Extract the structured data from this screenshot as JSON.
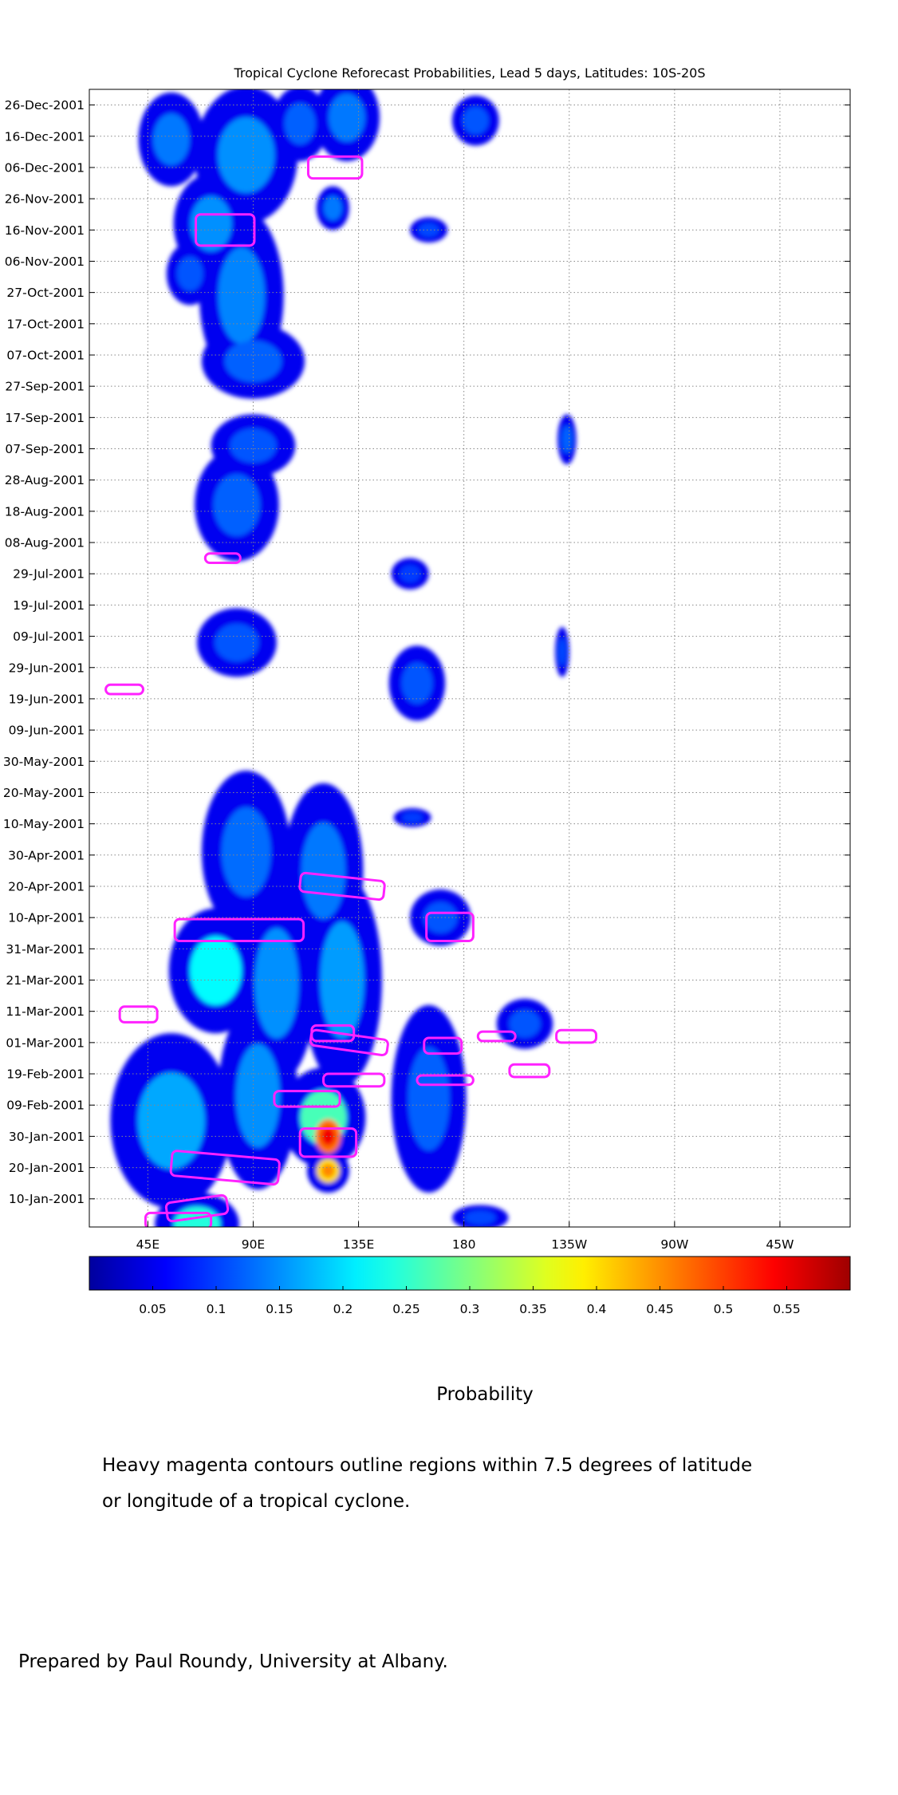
{
  "chart_data": {
    "type": "heatmap",
    "title": "Tropical Cyclone Reforecast Probabilities, Lead 5 days, Latitudes: 10S-20S",
    "x_ticks": [
      "45E",
      "90E",
      "135E",
      "180",
      "135W",
      "90W",
      "45W"
    ],
    "x_tick_lon": [
      45,
      90,
      135,
      180,
      225,
      270,
      315
    ],
    "xlim_lon": [
      20,
      345
    ],
    "y_ticks": [
      "26-Dec-2001",
      "16-Dec-2001",
      "06-Dec-2001",
      "26-Nov-2001",
      "16-Nov-2001",
      "06-Nov-2001",
      "27-Oct-2001",
      "17-Oct-2001",
      "07-Oct-2001",
      "27-Sep-2001",
      "17-Sep-2001",
      "07-Sep-2001",
      "28-Aug-2001",
      "18-Aug-2001",
      "08-Aug-2001",
      "29-Jul-2001",
      "19-Jul-2001",
      "09-Jul-2001",
      "29-Jun-2001",
      "19-Jun-2001",
      "09-Jun-2001",
      "30-May-2001",
      "20-May-2001",
      "10-May-2001",
      "30-Apr-2001",
      "20-Apr-2001",
      "10-Apr-2001",
      "31-Mar-2001",
      "21-Mar-2001",
      "11-Mar-2001",
      "01-Mar-2001",
      "19-Feb-2001",
      "09-Feb-2001",
      "30-Jan-2001",
      "20-Jan-2001",
      "10-Jan-2001"
    ],
    "ylim": [
      "01-Jan-2001",
      "31-Dec-2001"
    ],
    "grid": true,
    "colorbar": {
      "ticks": [
        "0.05",
        "0.1",
        "0.15",
        "0.2",
        "0.25",
        "0.3",
        "0.35",
        "0.4",
        "0.45",
        "0.5",
        "0.55"
      ],
      "range": [
        0.0,
        0.6
      ],
      "colormap": "jet"
    },
    "probability_blobs": [
      {
        "lon": 55,
        "date": "15-Dec-2001",
        "dlon": 14,
        "ddays": 15,
        "p": 0.12
      },
      {
        "lon": 87,
        "date": "10-Dec-2001",
        "dlon": 22,
        "ddays": 22,
        "p": 0.14
      },
      {
        "lon": 110,
        "date": "20-Dec-2001",
        "dlon": 12,
        "ddays": 12,
        "p": 0.1
      },
      {
        "lon": 72,
        "date": "18-Nov-2001",
        "dlon": 16,
        "ddays": 16,
        "p": 0.14
      },
      {
        "lon": 85,
        "date": "26-Oct-2001",
        "dlon": 18,
        "ddays": 28,
        "p": 0.13
      },
      {
        "lon": 90,
        "date": "05-Oct-2001",
        "dlon": 22,
        "ddays": 12,
        "p": 0.1
      },
      {
        "lon": 63,
        "date": "02-Nov-2001",
        "dlon": 10,
        "ddays": 10,
        "p": 0.09
      },
      {
        "lon": 130,
        "date": "22-Dec-2001",
        "dlon": 14,
        "ddays": 14,
        "p": 0.12
      },
      {
        "lon": 124,
        "date": "23-Nov-2001",
        "dlon": 7,
        "ddays": 7,
        "p": 0.12
      },
      {
        "lon": 185,
        "date": "21-Dec-2001",
        "dlon": 10,
        "ddays": 8,
        "p": 0.09
      },
      {
        "lon": 165,
        "date": "16-Nov-2001",
        "dlon": 8,
        "ddays": 4,
        "p": 0.08
      },
      {
        "lon": 90,
        "date": "08-Sep-2001",
        "dlon": 18,
        "ddays": 10,
        "p": 0.09
      },
      {
        "lon": 83,
        "date": "20-Aug-2001",
        "dlon": 18,
        "ddays": 18,
        "p": 0.1
      },
      {
        "lon": 83,
        "date": "07-Jul-2001",
        "dlon": 17,
        "ddays": 11,
        "p": 0.09
      },
      {
        "lon": 160,
        "date": "24-Jun-2001",
        "dlon": 12,
        "ddays": 12,
        "p": 0.09
      },
      {
        "lon": 87,
        "date": "01-May-2001",
        "dlon": 19,
        "ddays": 26,
        "p": 0.11
      },
      {
        "lon": 120,
        "date": "25-Apr-2001",
        "dlon": 17,
        "ddays": 28,
        "p": 0.12
      },
      {
        "lon": 74,
        "date": "24-Mar-2001",
        "dlon": 20,
        "ddays": 20,
        "p": 0.23
      },
      {
        "lon": 100,
        "date": "20-Mar-2001",
        "dlon": 17,
        "ddays": 32,
        "p": 0.14
      },
      {
        "lon": 128,
        "date": "21-Mar-2001",
        "dlon": 17,
        "ddays": 34,
        "p": 0.15
      },
      {
        "lon": 120,
        "date": "05-Feb-2001",
        "dlon": 18,
        "ddays": 16,
        "p": 0.29
      },
      {
        "lon": 122,
        "date": "30-Jan-2001",
        "dlon": 10,
        "ddays": 10,
        "p": 0.56
      },
      {
        "lon": 122,
        "date": "19-Jan-2001",
        "dlon": 9,
        "ddays": 7,
        "p": 0.47
      },
      {
        "lon": 55,
        "date": "04-Feb-2001",
        "dlon": 26,
        "ddays": 28,
        "p": 0.16
      },
      {
        "lon": 66,
        "date": "02-Jan-2001",
        "dlon": 18,
        "ddays": 10,
        "p": 0.26
      },
      {
        "lon": 92,
        "date": "12-Feb-2001",
        "dlon": 17,
        "ddays": 30,
        "p": 0.14
      },
      {
        "lon": 165,
        "date": "11-Feb-2001",
        "dlon": 16,
        "ddays": 30,
        "p": 0.1
      },
      {
        "lon": 187,
        "date": "04-Jan-2001",
        "dlon": 12,
        "ddays": 4,
        "p": 0.08
      },
      {
        "lon": 170,
        "date": "10-Apr-2001",
        "dlon": 13,
        "ddays": 9,
        "p": 0.09
      },
      {
        "lon": 206,
        "date": "07-Mar-2001",
        "dlon": 12,
        "ddays": 8,
        "p": 0.09
      },
      {
        "lon": 158,
        "date": "12-May-2001",
        "dlon": 8,
        "ddays": 3,
        "p": 0.07
      },
      {
        "lon": 157,
        "date": "29-Jul-2001",
        "dlon": 8,
        "ddays": 5,
        "p": 0.07
      },
      {
        "lon": 224,
        "date": "10-Sep-2001",
        "dlon": 4,
        "ddays": 8,
        "p": 0.1
      },
      {
        "lon": 222,
        "date": "04-Jul-2001",
        "dlon": 3,
        "ddays": 8,
        "p": 0.08
      }
    ],
    "cyclone_contours": [
      {
        "lon": 66,
        "date": "07-Jan-2001",
        "dlon": 26,
        "ddays": 6,
        "rot": -8
      },
      {
        "lon": 58,
        "date": "03-Jan-2001",
        "dlon": 28,
        "ddays": 5,
        "rot": 0
      },
      {
        "lon": 78,
        "date": "20-Jan-2001",
        "dlon": 46,
        "ddays": 8,
        "rot": 5
      },
      {
        "lon": 122,
        "date": "28-Jan-2001",
        "dlon": 24,
        "ddays": 9,
        "rot": 0
      },
      {
        "lon": 113,
        "date": "11-Feb-2001",
        "dlon": 28,
        "ddays": 5,
        "rot": 0
      },
      {
        "lon": 133,
        "date": "17-Feb-2001",
        "dlon": 26,
        "ddays": 4,
        "rot": 0
      },
      {
        "lon": 172,
        "date": "17-Feb-2001",
        "dlon": 24,
        "ddays": 3,
        "rot": 0
      },
      {
        "lon": 131,
        "date": "01-Mar-2001",
        "dlon": 33,
        "ddays": 5,
        "rot": 8
      },
      {
        "lon": 124,
        "date": "04-Mar-2001",
        "dlon": 18,
        "ddays": 5,
        "rot": 0
      },
      {
        "lon": 171,
        "date": "28-Feb-2001",
        "dlon": 16,
        "ddays": 5,
        "rot": 0
      },
      {
        "lon": 194,
        "date": "03-Mar-2001",
        "dlon": 16,
        "ddays": 3,
        "rot": 0
      },
      {
        "lon": 208,
        "date": "20-Feb-2001",
        "dlon": 17,
        "ddays": 4,
        "rot": 0
      },
      {
        "lon": 228,
        "date": "03-Mar-2001",
        "dlon": 17,
        "ddays": 4,
        "rot": 0
      },
      {
        "lon": 41,
        "date": "10-Mar-2001",
        "dlon": 16,
        "ddays": 5,
        "rot": 0
      },
      {
        "lon": 84,
        "date": "06-Apr-2001",
        "dlon": 55,
        "ddays": 7,
        "rot": 0
      },
      {
        "lon": 128,
        "date": "20-Apr-2001",
        "dlon": 36,
        "ddays": 6,
        "rot": 6
      },
      {
        "lon": 174,
        "date": "07-Apr-2001",
        "dlon": 20,
        "ddays": 9,
        "rot": 0
      },
      {
        "lon": 35,
        "date": "22-Jun-2001",
        "dlon": 16,
        "ddays": 3,
        "rot": 0
      },
      {
        "lon": 77,
        "date": "03-Aug-2001",
        "dlon": 15,
        "ddays": 3,
        "rot": 0
      },
      {
        "lon": 78,
        "date": "16-Nov-2001",
        "dlon": 25,
        "ddays": 10,
        "rot": 0
      },
      {
        "lon": 125,
        "date": "06-Dec-2001",
        "dlon": 23,
        "ddays": 7,
        "rot": 0
      }
    ]
  },
  "colorbar_label": "Probability",
  "note_lines": [
    "Heavy magenta contours outline regions within 7.5 degrees of latitude",
    "or longitude of a tropical cyclone."
  ],
  "credit": "Prepared by Paul Roundy, University at Albany.",
  "colors": {
    "contour": "#ff22ff",
    "grid": "#888888"
  }
}
